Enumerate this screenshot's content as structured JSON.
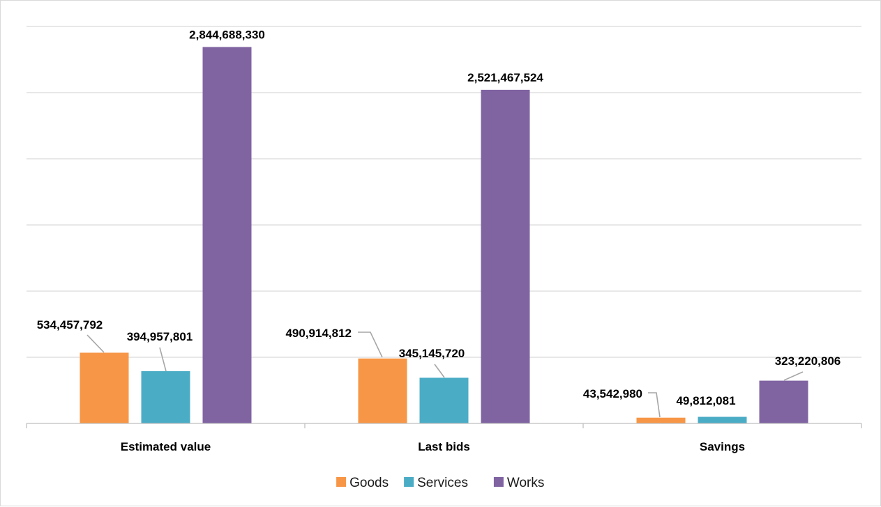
{
  "chart_data": {
    "type": "bar",
    "title": "",
    "xlabel": "",
    "ylabel": "",
    "categories": [
      "Estimated value",
      "Last bids",
      "Savings"
    ],
    "series": [
      {
        "name": "Goods",
        "color": "#f79646",
        "values": [
          534457792,
          490914812,
          43542980
        ],
        "labels": [
          "534,457,792",
          "490,914,812",
          "43,542,980"
        ]
      },
      {
        "name": "Services",
        "color": "#4bacc6",
        "values": [
          394957801,
          345145720,
          49812081
        ],
        "labels": [
          "394,957,801",
          "345,145,720",
          "49,812,081"
        ]
      },
      {
        "name": "Works",
        "color": "#8064a2",
        "values": [
          2844688330,
          2521467524,
          323220806
        ],
        "labels": [
          "2,844,688,330",
          "2,521,467,524",
          "323,220,806"
        ]
      }
    ],
    "ylim": [
      0,
      3000000000
    ],
    "y_gridline_step": 500000000,
    "grid": true,
    "legend": "bottom",
    "y_tick_labels_shown": false
  }
}
